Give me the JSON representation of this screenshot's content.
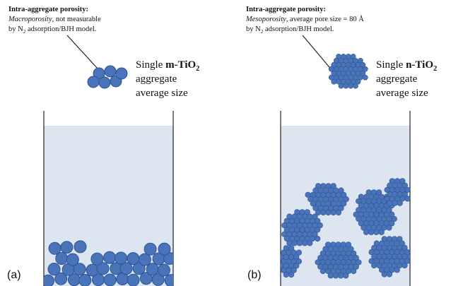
{
  "panels": [
    {
      "label": "(a)",
      "note": {
        "heading": "Intra-aggregate porosity:",
        "line2": [
          "Macroporosity",
          ", not measurable"
        ],
        "line3": [
          "by N",
          "2",
          " adsorption/BJH model."
        ]
      },
      "aggregate": {
        "line1": [
          "Single ",
          "m-TiO",
          "2"
        ],
        "line2": "aggregate",
        "line3": "average size"
      }
    },
    {
      "label": "(b)",
      "note": {
        "heading": "Intra-aggregate porosity:",
        "line2": [
          "Mesoporosity",
          ", average pore size = 80 Å"
        ],
        "line3": [
          "by N",
          "2",
          " adsorption/BJH model."
        ]
      },
      "aggregate": {
        "line1": [
          "Single ",
          "n-TiO",
          "2"
        ],
        "line2": "aggregate",
        "line3": "average size"
      }
    }
  ]
}
